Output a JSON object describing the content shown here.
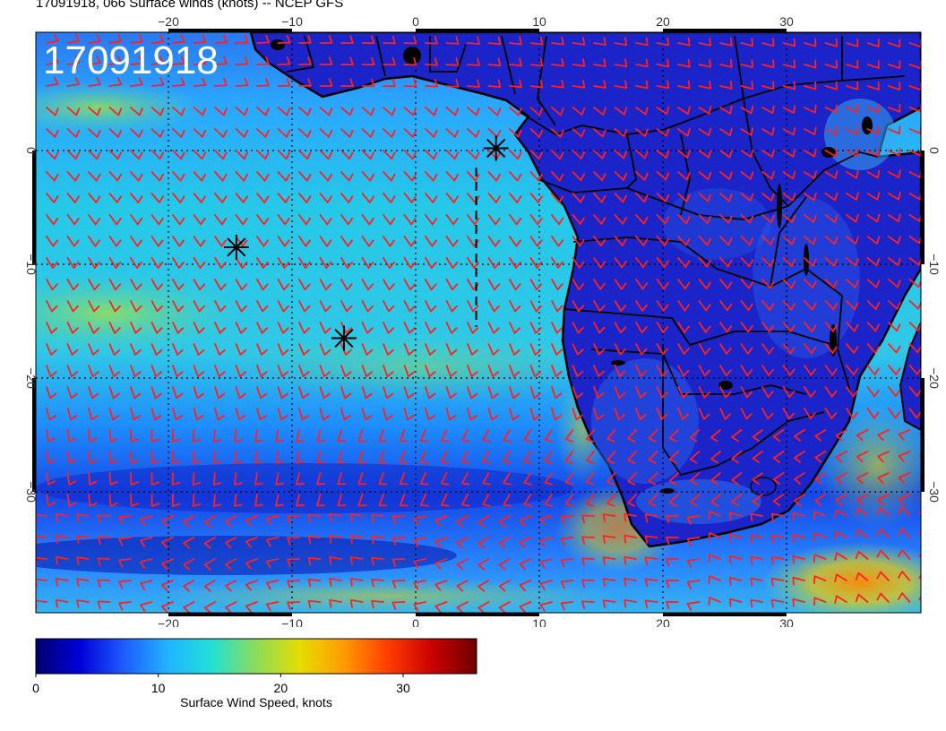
{
  "header": {
    "title": "17091918, 066 Surface winds (knots) -- NCEP GFS"
  },
  "map": {
    "stamp": "17091918",
    "lon_ticks": [
      "−20",
      "−10",
      "0",
      "10",
      "20",
      "30"
    ],
    "lat_ticks": [
      "0",
      "−10",
      "−20",
      "−30"
    ],
    "barb_color": "#ff2020",
    "storm_markers": [
      {
        "lon": 6.5,
        "lat": 0.2
      },
      {
        "lon": -14.5,
        "lat": -8.5
      },
      {
        "lon": -5.8,
        "lat": -16.5
      }
    ],
    "track_line": {
      "lon": [
        4.9,
        4.9
      ],
      "lat": [
        -1.5,
        -15.5
      ]
    }
  },
  "colorbar": {
    "label": "Surface Wind Speed, knots",
    "ticks": [
      "0",
      "10",
      "20",
      "30"
    ],
    "range": [
      0,
      36
    ],
    "colors": [
      "#00006e",
      "#0000d8",
      "#1e5cff",
      "#20b4ff",
      "#22e0d4",
      "#8cdc5a",
      "#e6dc00",
      "#ff9a00",
      "#ff3c00",
      "#c80000",
      "#6e0000"
    ]
  }
}
